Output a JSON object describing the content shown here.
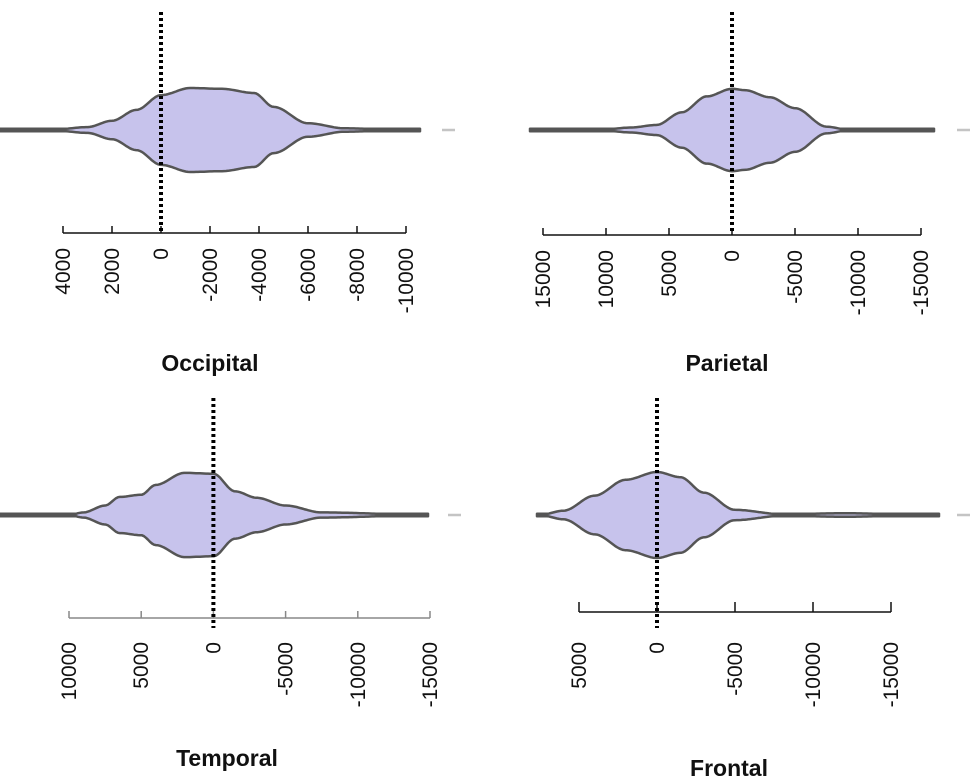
{
  "figure": {
    "background": "#ffffff",
    "violin_fill": "#c7c3ec",
    "violin_stroke": "#555555",
    "inner_shade": "#c4c4c4",
    "reference_line_color": "#000000"
  },
  "chart_data": [
    {
      "type": "violin",
      "title": "Occipital",
      "reference_line": 0,
      "x_ticks": [
        4000,
        2000,
        0,
        -2000,
        -4000,
        -6000,
        -8000,
        -10000
      ],
      "tick_labels": [
        "4000",
        "2000",
        "0",
        "-2000",
        "-4000",
        "-6000",
        "-8000",
        "-10000"
      ],
      "xlim": [
        4000,
        -10000
      ],
      "axis_direction": "reversed",
      "density": [
        [
          4000,
          0.03
        ],
        [
          3000,
          0.07
        ],
        [
          2000,
          0.22
        ],
        [
          1000,
          0.48
        ],
        [
          0,
          0.83
        ],
        [
          -1200,
          1.0
        ],
        [
          -2500,
          0.98
        ],
        [
          -3800,
          0.88
        ],
        [
          -4600,
          0.55
        ],
        [
          -6000,
          0.16
        ],
        [
          -7500,
          0.04
        ],
        [
          -10000,
          0.0
        ]
      ]
    },
    {
      "type": "violin",
      "title": "Parietal",
      "reference_line": 0,
      "x_ticks": [
        15000,
        10000,
        5000,
        0,
        -5000,
        -10000,
        -15000
      ],
      "tick_labels": [
        "15000",
        "10000",
        "5000",
        "0",
        "-5000",
        "-10000",
        "-15000"
      ],
      "xlim": [
        15000,
        -15000
      ],
      "axis_direction": "reversed",
      "density": [
        [
          15000,
          0.0
        ],
        [
          10000,
          0.02
        ],
        [
          8000,
          0.06
        ],
        [
          6000,
          0.12
        ],
        [
          4000,
          0.42
        ],
        [
          2000,
          0.8
        ],
        [
          0,
          0.98
        ],
        [
          -1000,
          0.95
        ],
        [
          -3000,
          0.78
        ],
        [
          -5000,
          0.52
        ],
        [
          -7500,
          0.08
        ],
        [
          -9000,
          0.02
        ],
        [
          -16000,
          0.0
        ]
      ]
    },
    {
      "type": "violin",
      "title": "Temporal",
      "reference_line": 0,
      "x_ticks": [
        10000,
        5000,
        0,
        -5000,
        -10000,
        -15000
      ],
      "tick_labels": [
        "10000",
        "5000",
        "0",
        "-5000",
        "-10000",
        "-15000"
      ],
      "xlim": [
        10000,
        -15000
      ],
      "axis_direction": "reversed",
      "density": [
        [
          10000,
          0.0
        ],
        [
          9000,
          0.06
        ],
        [
          7500,
          0.22
        ],
        [
          6500,
          0.42
        ],
        [
          5000,
          0.47
        ],
        [
          4000,
          0.7
        ],
        [
          2000,
          0.98
        ],
        [
          0,
          0.96
        ],
        [
          -1500,
          0.55
        ],
        [
          -3000,
          0.4
        ],
        [
          -5000,
          0.22
        ],
        [
          -7500,
          0.06
        ],
        [
          -15000,
          0.0
        ]
      ]
    },
    {
      "type": "violin",
      "title": "Frontal",
      "reference_line": 0,
      "x_ticks": [
        5000,
        0,
        -5000,
        -10000,
        -15000
      ],
      "tick_labels": [
        "5000",
        "0",
        "-5000",
        "-10000",
        "-15000"
      ],
      "xlim": [
        5000,
        -15000
      ],
      "axis_direction": "reversed",
      "density": [
        [
          7500,
          0.0
        ],
        [
          6000,
          0.1
        ],
        [
          4000,
          0.45
        ],
        [
          2000,
          0.82
        ],
        [
          0,
          1.0
        ],
        [
          -1500,
          0.88
        ],
        [
          -3000,
          0.52
        ],
        [
          -5000,
          0.12
        ],
        [
          -8000,
          0.02
        ],
        [
          -12000,
          0.04
        ],
        [
          -18000,
          0.0
        ]
      ]
    }
  ]
}
